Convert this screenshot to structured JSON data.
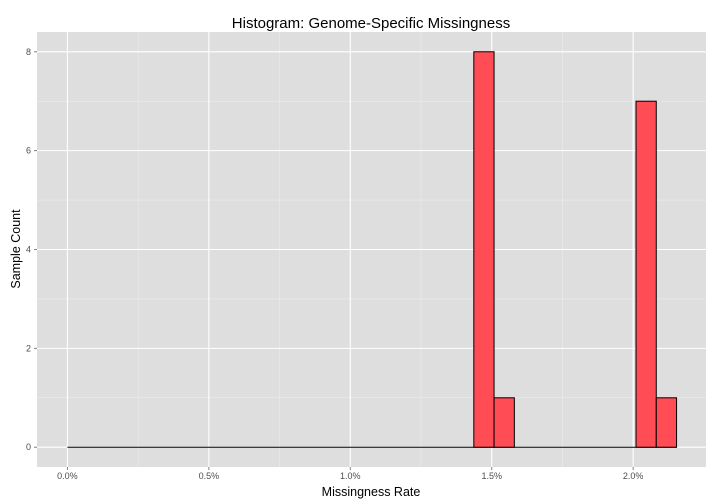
{
  "chart_data": {
    "type": "bar",
    "title": "Histogram: Genome-Specific Missingness",
    "xlabel": "Missingness Rate",
    "ylabel": "Sample Count",
    "x_unit": "%",
    "xlim": [
      -0.1075,
      2.2575
    ],
    "ylim": [
      -0.4,
      8.4
    ],
    "x_ticks": [
      0.0,
      0.5,
      1.0,
      1.5,
      2.0
    ],
    "x_tick_labels": [
      "0.0%",
      "0.5%",
      "1.0%",
      "1.5%",
      "2.0%"
    ],
    "y_ticks": [
      0,
      2,
      4,
      6,
      8
    ],
    "y_tick_labels": [
      "0",
      "2",
      "4",
      "6",
      "8"
    ],
    "bin_width": 0.0717,
    "bins": [
      {
        "x_start": 1.4367,
        "x_end": 1.5083,
        "count": 8
      },
      {
        "x_start": 1.5083,
        "x_end": 1.58,
        "count": 1
      },
      {
        "x_start": 2.0101,
        "x_end": 2.0817,
        "count": 7
      },
      {
        "x_start": 2.0817,
        "x_end": 2.1534,
        "count": 1
      }
    ],
    "zero_line_range": [
      0.0,
      2.1534
    ],
    "bar_fill": "#ff4c55",
    "bar_stroke": "#000000",
    "panel_background": "#dedede",
    "grid": true,
    "grid_color": "#ffffff",
    "legend": "none"
  }
}
